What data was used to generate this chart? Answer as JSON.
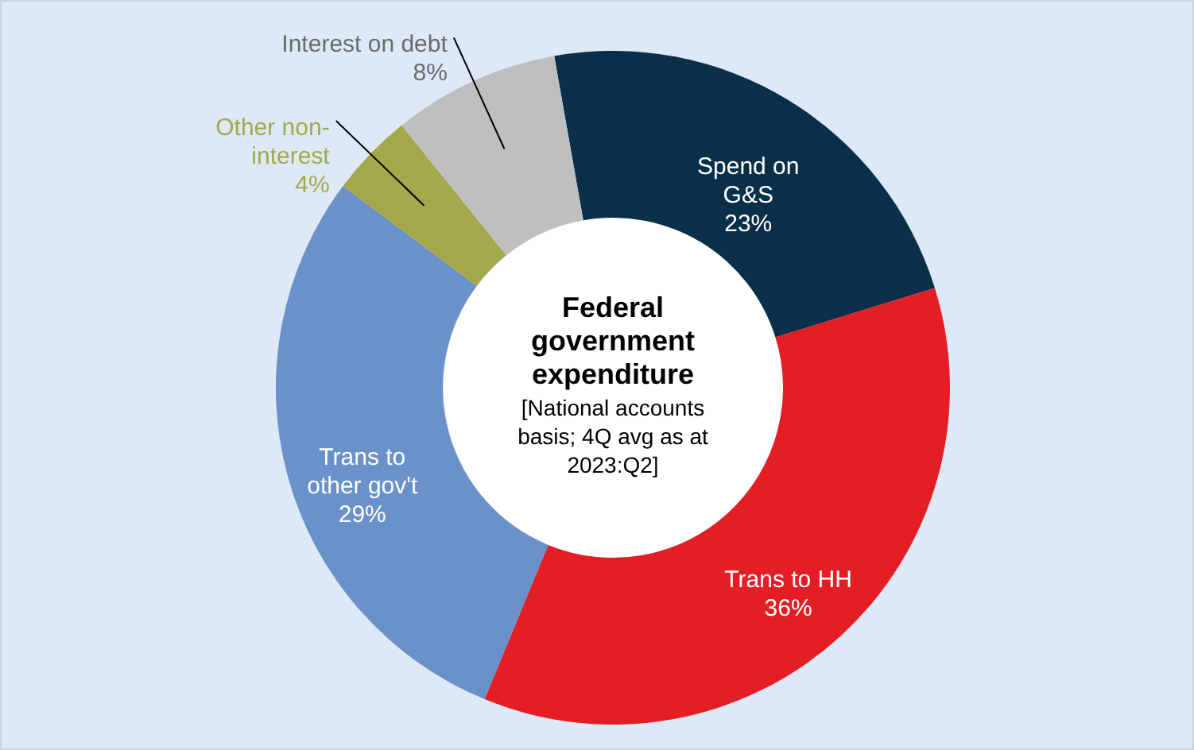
{
  "chart_data": {
    "type": "donut",
    "title": "Federal government expenditure",
    "subtitle": "[National accounts basis; 4Q avg as at 2023:Q2]",
    "categories": [
      "Spend on G&S",
      "Trans to HH",
      "Trans to other gov't",
      "Other non-interest",
      "Interest on debt"
    ],
    "values": [
      23,
      36,
      29,
      4,
      8
    ],
    "value_labels": [
      "23%",
      "36%",
      "29%",
      "4%",
      "8%"
    ],
    "colors": [
      "#0a3049",
      "#e31e24",
      "#6a91c9",
      "#a4a84a",
      "#bfbfbf"
    ]
  }
}
